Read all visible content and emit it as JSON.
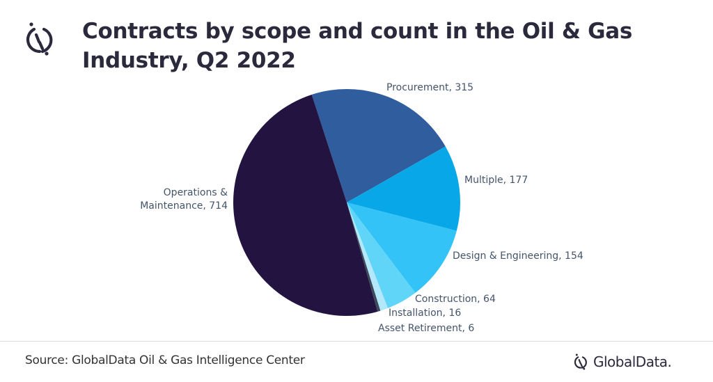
{
  "header": {
    "title": "Contracts by scope and count in the Oil & Gas Industry, Q2 2022",
    "logo_icon": "globaldata-logo-icon"
  },
  "footer": {
    "source": "Source: GlobalData Oil & Gas Intelligence Center",
    "brand": "GlobalData."
  },
  "colors": {
    "text": "#2b2a3d",
    "label": "#44546a"
  },
  "chart_data": {
    "type": "pie",
    "title": "Contracts by scope and count in the Oil & Gas Industry, Q2 2022",
    "start_angle_deg": -108,
    "direction": "clockwise",
    "slices": [
      {
        "label": "Procurement",
        "value": 315,
        "color": "#2f5d9e",
        "display": "Procurement, 315"
      },
      {
        "label": "Multiple",
        "value": 177,
        "color": "#08a8e8",
        "display": "Multiple, 177"
      },
      {
        "label": "Design & Engineering",
        "value": 154,
        "color": "#34c3f7",
        "display": "Design & Engineering, 154"
      },
      {
        "label": "Construction",
        "value": 64,
        "color": "#60d5f7",
        "display": "Construction, 64"
      },
      {
        "label": "Installation",
        "value": 16,
        "color": "#b3e8fb",
        "display": "Installation, 16"
      },
      {
        "label": "Asset Retirement",
        "value": 6,
        "color": "#3d4a5c",
        "display": "Asset Retirement, 6"
      },
      {
        "label": "Operations & Maintenance",
        "value": 714,
        "color": "#231340",
        "display_lines": [
          "Operations &",
          "Maintenance, 714"
        ]
      }
    ],
    "legend": "none",
    "data_labels": "outside"
  }
}
